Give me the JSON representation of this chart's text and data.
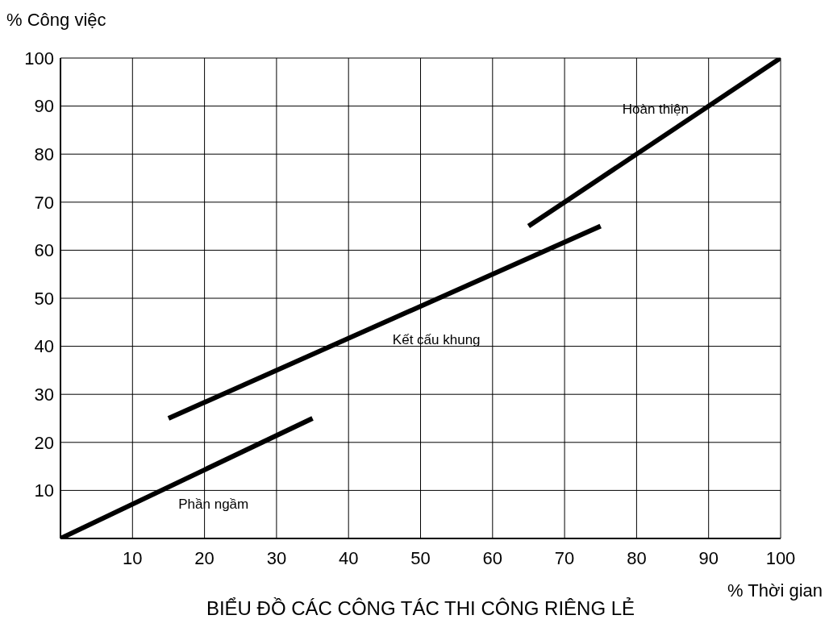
{
  "chart_data": {
    "type": "line",
    "title": "BIỂU ĐỒ CÁC CÔNG TÁC THI CÔNG RIÊNG LẺ",
    "xlabel": "% Thời gian",
    "ylabel": "% Công việc",
    "series": [
      {
        "name": "Phần ngầm",
        "color": "#000000",
        "x": [
          0,
          35
        ],
        "values": [
          0,
          25
        ]
      },
      {
        "name": "Kết cấu khung",
        "color": "#000000",
        "x": [
          15,
          75
        ],
        "values": [
          25,
          65
        ]
      },
      {
        "name": "Hoàn thiện",
        "color": "#000000",
        "x": [
          65,
          100
        ],
        "values": [
          65,
          100
        ]
      }
    ],
    "xlim": [
      0,
      100
    ],
    "ylim": [
      0,
      100
    ],
    "xticks": [
      10,
      20,
      30,
      40,
      50,
      60,
      70,
      80,
      90,
      100
    ],
    "yticks": [
      10,
      20,
      30,
      40,
      50,
      60,
      70,
      80,
      90,
      100
    ],
    "grid": true,
    "legend": false,
    "marker": "none",
    "line_style": "solid"
  }
}
